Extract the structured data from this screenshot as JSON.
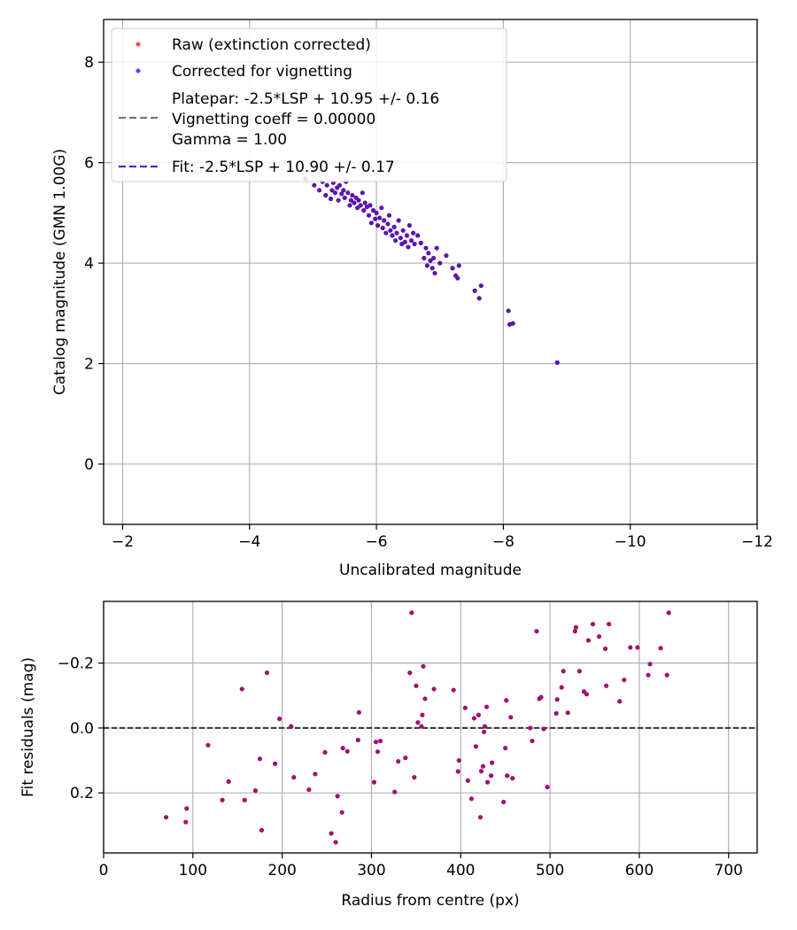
{
  "chart_data": [
    {
      "type": "scatter",
      "xlabel": "Uncalibrated magnitude",
      "ylabel": "Catalog magnitude (GMN 1.00G)",
      "xlim": [
        -1.7,
        -12
      ],
      "ylim": [
        8.85,
        -1.2
      ],
      "x_ticks": [
        -2,
        -4,
        -6,
        -8,
        -10,
        -12
      ],
      "x_tick_labels": [
        "−2",
        "−4",
        "−6",
        "−8",
        "−10",
        "−12"
      ],
      "y_ticks": [
        0,
        2,
        4,
        6,
        8
      ],
      "y_tick_labels": [
        "0",
        "2",
        "4",
        "6",
        "8"
      ],
      "grid": true,
      "legend_position": "top-left",
      "legend": [
        {
          "label": "Raw (extinction corrected)",
          "kind": "marker",
          "color": "#ff4444"
        },
        {
          "label": "Corrected for vignetting",
          "kind": "marker",
          "color": "#4a4af5"
        },
        {
          "label_lines": [
            "Platepar: -2.5*LSP + 10.95 +/- 0.16",
            "Vignetting coeff = 0.00000",
            "Gamma = 1.00"
          ],
          "kind": "dashed",
          "color": "#777777"
        },
        {
          "label": "Fit: -2.5*LSP + 10.90 +/- 0.17",
          "kind": "dashed",
          "color": "#3333ee"
        }
      ],
      "lines": [
        {
          "name": "Platepar",
          "slope": -2.5,
          "intercept": 10.95,
          "color": "#777777"
        },
        {
          "name": "Fit",
          "slope": -2.5,
          "intercept": 10.9,
          "color": "#3333ee"
        }
      ],
      "point_color": "#5a14b0",
      "points": [
        [
          -4.88,
          5.68
        ],
        [
          -5.02,
          5.55
        ],
        [
          -5.1,
          5.45
        ],
        [
          -5.15,
          5.62
        ],
        [
          -5.2,
          5.35
        ],
        [
          -5.22,
          5.55
        ],
        [
          -5.28,
          5.28
        ],
        [
          -5.3,
          5.45
        ],
        [
          -5.32,
          5.6
        ],
        [
          -5.35,
          5.4
        ],
        [
          -5.38,
          5.5
        ],
        [
          -5.4,
          5.25
        ],
        [
          -5.42,
          5.55
        ],
        [
          -5.45,
          5.38
        ],
        [
          -5.48,
          5.45
        ],
        [
          -5.5,
          5.3
        ],
        [
          -5.52,
          5.62
        ],
        [
          -5.55,
          5.4
        ],
        [
          -5.58,
          5.15
        ],
        [
          -5.6,
          5.25
        ],
        [
          -5.62,
          5.35
        ],
        [
          -5.65,
          5.2
        ],
        [
          -5.68,
          5.3
        ],
        [
          -5.7,
          5.1
        ],
        [
          -5.72,
          5.25
        ],
        [
          -5.75,
          5.15
        ],
        [
          -5.78,
          5.4
        ],
        [
          -5.8,
          5.05
        ],
        [
          -5.82,
          5.2
        ],
        [
          -5.85,
          5.12
        ],
        [
          -5.88,
          4.95
        ],
        [
          -5.9,
          5.15
        ],
        [
          -5.92,
          4.8
        ],
        [
          -5.95,
          5.05
        ],
        [
          -5.98,
          4.88
        ],
        [
          -6.0,
          5.0
        ],
        [
          -6.02,
          4.75
        ],
        [
          -6.05,
          4.9
        ],
        [
          -6.08,
          5.1
        ],
        [
          -6.1,
          4.7
        ],
        [
          -6.12,
          4.85
        ],
        [
          -6.15,
          4.6
        ],
        [
          -6.18,
          4.78
        ],
        [
          -6.2,
          4.95
        ],
        [
          -6.22,
          4.65
        ],
        [
          -6.25,
          4.55
        ],
        [
          -6.28,
          4.72
        ],
        [
          -6.3,
          4.45
        ],
        [
          -6.32,
          4.6
        ],
        [
          -6.35,
          4.85
        ],
        [
          -6.38,
          4.5
        ],
        [
          -6.4,
          4.38
        ],
        [
          -6.42,
          4.65
        ],
        [
          -6.45,
          4.42
        ],
        [
          -6.48,
          4.55
        ],
        [
          -6.5,
          4.32
        ],
        [
          -6.52,
          4.75
        ],
        [
          -6.55,
          4.45
        ],
        [
          -6.58,
          4.6
        ],
        [
          -6.6,
          4.38
        ],
        [
          -6.65,
          4.55
        ],
        [
          -6.7,
          4.4
        ],
        [
          -6.75,
          4.1
        ],
        [
          -6.78,
          4.3
        ],
        [
          -6.8,
          3.95
        ],
        [
          -6.82,
          4.2
        ],
        [
          -6.85,
          4.05
        ],
        [
          -6.88,
          3.9
        ],
        [
          -6.9,
          4.1
        ],
        [
          -6.92,
          3.8
        ],
        [
          -6.95,
          4.3
        ],
        [
          -7.0,
          4.0
        ],
        [
          -7.1,
          4.15
        ],
        [
          -7.2,
          3.9
        ],
        [
          -7.25,
          3.75
        ],
        [
          -7.28,
          3.7
        ],
        [
          -7.3,
          3.95
        ],
        [
          -7.55,
          3.45
        ],
        [
          -7.62,
          3.3
        ],
        [
          -7.65,
          3.55
        ],
        [
          -8.08,
          3.05
        ],
        [
          -8.1,
          2.78
        ],
        [
          -8.15,
          2.8
        ],
        [
          -8.85,
          2.02
        ]
      ]
    },
    {
      "type": "scatter",
      "xlabel": "Radius from centre (px)",
      "ylabel": "Fit residuals (mag)",
      "xlim": [
        0,
        732
      ],
      "ylim": [
        -0.39,
        0.385
      ],
      "x_ticks": [
        0,
        100,
        200,
        300,
        400,
        500,
        600,
        700
      ],
      "x_tick_labels": [
        "0",
        "100",
        "200",
        "300",
        "400",
        "500",
        "600",
        "700"
      ],
      "y_ticks": [
        -0.2,
        0.0,
        0.2
      ],
      "y_tick_labels": [
        "−0.2",
        "0.0",
        "0.2"
      ],
      "grid": true,
      "reference_line": {
        "y": 0.0,
        "color": "#333333",
        "style": "dashed"
      },
      "point_color": "#a0106e",
      "points": [
        [
          70,
          0.275
        ],
        [
          92,
          0.29
        ],
        [
          93,
          0.248
        ],
        [
          117,
          0.053
        ],
        [
          133,
          0.222
        ],
        [
          140,
          0.165
        ],
        [
          155,
          -0.12
        ],
        [
          158,
          0.222
        ],
        [
          170,
          0.193
        ],
        [
          175,
          0.095
        ],
        [
          177,
          0.315
        ],
        [
          183,
          -0.17
        ],
        [
          192,
          0.11
        ],
        [
          197,
          -0.028
        ],
        [
          210,
          -0.005
        ],
        [
          213,
          0.152
        ],
        [
          230,
          0.19
        ],
        [
          237,
          0.142
        ],
        [
          248,
          0.075
        ],
        [
          255,
          0.325
        ],
        [
          260,
          0.352
        ],
        [
          262,
          0.21
        ],
        [
          267,
          0.26
        ],
        [
          268,
          0.062
        ],
        [
          273,
          0.072
        ],
        [
          285,
          0.037
        ],
        [
          286,
          -0.048
        ],
        [
          303,
          0.167
        ],
        [
          305,
          0.043
        ],
        [
          307,
          0.073
        ],
        [
          310,
          0.04
        ],
        [
          326,
          0.197
        ],
        [
          330,
          0.103
        ],
        [
          338,
          0.092
        ],
        [
          343,
          -0.17
        ],
        [
          345,
          -0.355
        ],
        [
          348,
          0.152
        ],
        [
          350,
          -0.13
        ],
        [
          352,
          -0.017
        ],
        [
          356,
          -0.005
        ],
        [
          357,
          -0.04
        ],
        [
          358,
          -0.19
        ],
        [
          360,
          -0.09
        ],
        [
          370,
          -0.12
        ],
        [
          392,
          -0.117
        ],
        [
          397,
          0.134
        ],
        [
          398,
          0.1
        ],
        [
          405,
          -0.062
        ],
        [
          408,
          0.162
        ],
        [
          412,
          0.218
        ],
        [
          415,
          -0.03
        ],
        [
          417,
          0.057
        ],
        [
          420,
          -0.04
        ],
        [
          422,
          0.275
        ],
        [
          423,
          0.133
        ],
        [
          425,
          0.118
        ],
        [
          426,
          0.012
        ],
        [
          427,
          -0.005
        ],
        [
          429,
          -0.065
        ],
        [
          430,
          0.167
        ],
        [
          434,
          0.147
        ],
        [
          435,
          0.107
        ],
        [
          448,
          0.228
        ],
        [
          450,
          0.062
        ],
        [
          451,
          -0.085
        ],
        [
          452,
          0.147
        ],
        [
          456,
          -0.033
        ],
        [
          458,
          0.155
        ],
        [
          478,
          0.0
        ],
        [
          480,
          0.04
        ],
        [
          485,
          -0.298
        ],
        [
          488,
          -0.09
        ],
        [
          490,
          -0.095
        ],
        [
          493,
          0.003
        ],
        [
          497,
          0.182
        ],
        [
          507,
          -0.045
        ],
        [
          508,
          -0.088
        ],
        [
          513,
          -0.125
        ],
        [
          515,
          -0.175
        ],
        [
          520,
          -0.047
        ],
        [
          528,
          -0.298
        ],
        [
          529,
          -0.31
        ],
        [
          533,
          -0.175
        ],
        [
          538,
          -0.112
        ],
        [
          541,
          -0.104
        ],
        [
          543,
          -0.27
        ],
        [
          548,
          -0.32
        ],
        [
          555,
          -0.282
        ],
        [
          562,
          -0.244
        ],
        [
          563,
          -0.13
        ],
        [
          566,
          -0.32
        ],
        [
          578,
          -0.082
        ],
        [
          583,
          -0.148
        ],
        [
          590,
          -0.248
        ],
        [
          598,
          -0.248
        ],
        [
          610,
          -0.163
        ],
        [
          612,
          -0.197
        ],
        [
          624,
          -0.246
        ],
        [
          631,
          -0.163
        ],
        [
          633,
          -0.355
        ]
      ]
    }
  ]
}
